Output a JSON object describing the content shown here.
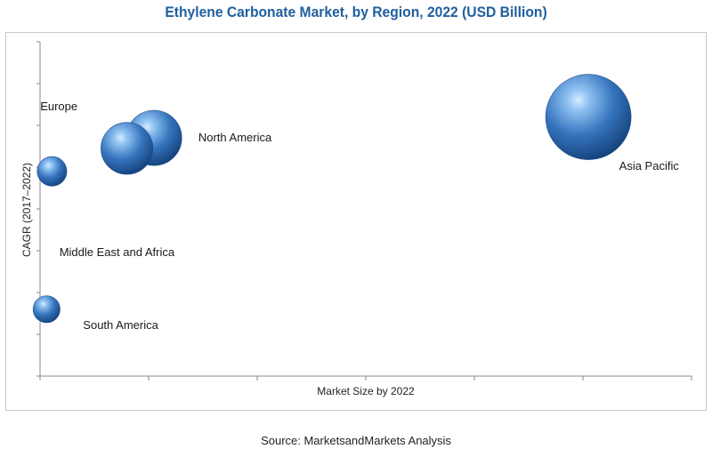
{
  "chart_data": {
    "type": "scatter",
    "title": "Ethylene Carbonate Market, by Region, 2022 (USD Billion)",
    "xlabel": "Market Size by 2022",
    "ylabel": "CAGR (2017–2022)",
    "grid": false,
    "legend": "none",
    "xlim": [
      0,
      6
    ],
    "ylim": [
      0,
      8
    ],
    "points": [
      {
        "label": "Asia Pacific",
        "x": 5.05,
        "y": 6.2,
        "size": 1.0
      },
      {
        "label": "North America",
        "x": 1.05,
        "y": 5.7,
        "size": 0.42
      },
      {
        "label": "Europe",
        "x": 0.8,
        "y": 5.45,
        "size": 0.37
      },
      {
        "label": "Middle East and Africa",
        "x": 0.11,
        "y": 4.9,
        "size": 0.12
      },
      {
        "label": "South America",
        "x": 0.06,
        "y": 1.6,
        "size": 0.1
      }
    ],
    "bubble_color": "#2e6eb5"
  },
  "source": "Source: MarketsandMarkets Analysis"
}
